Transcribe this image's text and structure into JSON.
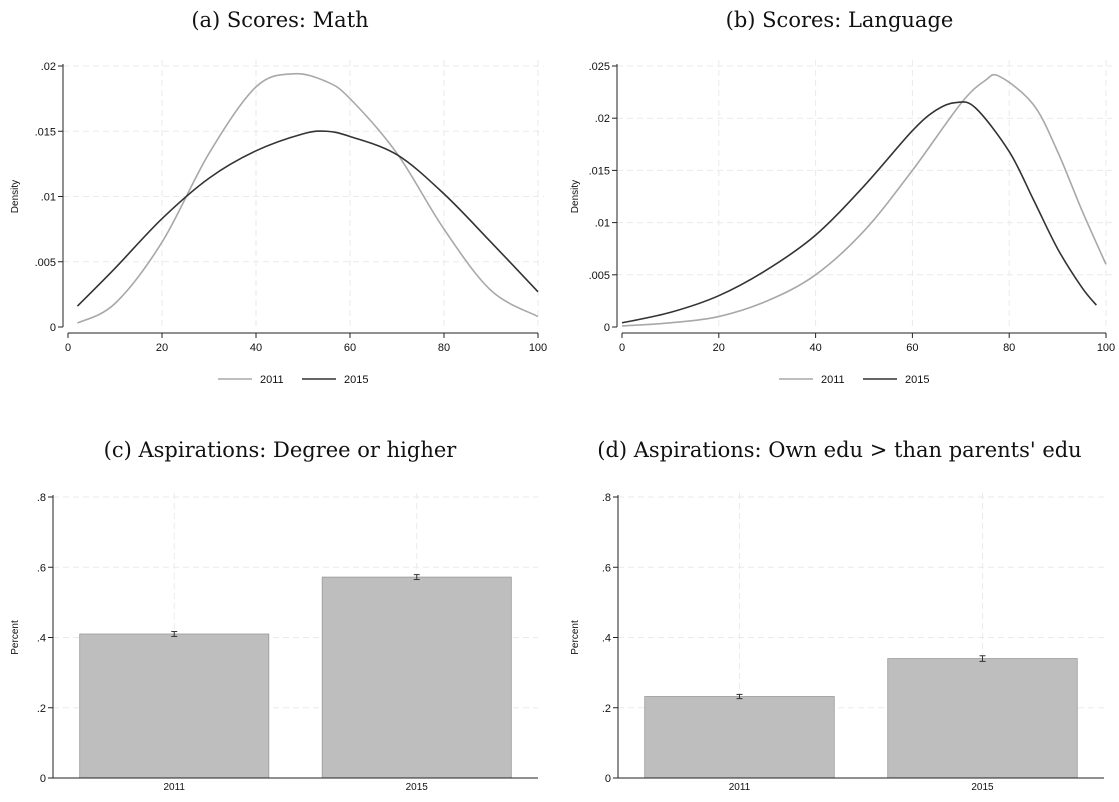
{
  "chart_data": [
    {
      "id": "a",
      "type": "line",
      "title": "(a) Scores: Math",
      "ylabel": "Density",
      "xlabel": "",
      "xlim": [
        0,
        100
      ],
      "ylim": [
        0,
        0.02
      ],
      "xticks": [
        "0",
        "20",
        "40",
        "60",
        "80",
        "100"
      ],
      "yticks": [
        "0",
        ".005",
        ".01",
        ".015",
        ".02"
      ],
      "grid": true,
      "legend": "bottom",
      "series": [
        {
          "name": "2011",
          "color": "#a8a8a8",
          "x": [
            2,
            10,
            20,
            30,
            40,
            48,
            55,
            60,
            70,
            80,
            90,
            100
          ],
          "y": [
            0.0003,
            0.0018,
            0.0065,
            0.0133,
            0.0184,
            0.0194,
            0.0188,
            0.0175,
            0.0133,
            0.0075,
            0.0028,
            0.0008
          ]
        },
        {
          "name": "2015",
          "color": "#333333",
          "x": [
            2,
            10,
            20,
            30,
            40,
            50,
            55,
            60,
            70,
            80,
            90,
            100
          ],
          "y": [
            0.0016,
            0.0045,
            0.0083,
            0.0114,
            0.0135,
            0.0148,
            0.015,
            0.0146,
            0.0132,
            0.0102,
            0.0065,
            0.0027
          ]
        }
      ]
    },
    {
      "id": "b",
      "type": "line",
      "title": "(b) Scores: Language",
      "ylabel": "Density",
      "xlabel": "",
      "xlim": [
        0,
        100
      ],
      "ylim": [
        0,
        0.025
      ],
      "xticks": [
        "0",
        "20",
        "40",
        "60",
        "80",
        "100"
      ],
      "yticks": [
        "0",
        ".005",
        ".01",
        ".015",
        ".02",
        ".025"
      ],
      "grid": true,
      "legend": "bottom",
      "series": [
        {
          "name": "2011",
          "color": "#a8a8a8",
          "x": [
            0,
            10,
            20,
            30,
            40,
            50,
            60,
            70,
            75,
            78,
            85,
            90,
            95,
            100
          ],
          "y": [
            0.0001,
            0.0004,
            0.001,
            0.0025,
            0.005,
            0.0092,
            0.015,
            0.0214,
            0.0236,
            0.024,
            0.0213,
            0.0168,
            0.0112,
            0.006
          ]
        },
        {
          "name": "2015",
          "color": "#333333",
          "x": [
            0,
            10,
            20,
            30,
            40,
            50,
            60,
            65,
            69,
            73,
            80,
            85,
            90,
            95,
            98
          ],
          "y": [
            0.0004,
            0.0014,
            0.003,
            0.0055,
            0.0088,
            0.0135,
            0.0188,
            0.0208,
            0.0215,
            0.021,
            0.0168,
            0.0122,
            0.0075,
            0.0038,
            0.0021
          ]
        }
      ]
    },
    {
      "id": "c",
      "type": "bar",
      "title": "(c) Aspirations: Degree or higher",
      "ylabel": "Percent",
      "xlabel": "",
      "categories": [
        "2011",
        "2015"
      ],
      "values": [
        0.41,
        0.572
      ],
      "errors": [
        0.007,
        0.007
      ],
      "ylim": [
        0,
        0.8
      ],
      "yticks": [
        "0",
        ".2",
        ".4",
        ".6",
        ".8"
      ],
      "bar_color": "#bebebe",
      "grid": true
    },
    {
      "id": "d",
      "type": "bar",
      "title": "(d) Aspirations: Own edu > than parents' edu",
      "ylabel": "Percent",
      "xlabel": "",
      "categories": [
        "2011",
        "2015"
      ],
      "values": [
        0.232,
        0.34
      ],
      "errors": [
        0.006,
        0.008
      ],
      "ylim": [
        0,
        0.8
      ],
      "yticks": [
        "0",
        ".2",
        ".4",
        ".6",
        ".8"
      ],
      "bar_color": "#bebebe",
      "grid": true
    }
  ]
}
